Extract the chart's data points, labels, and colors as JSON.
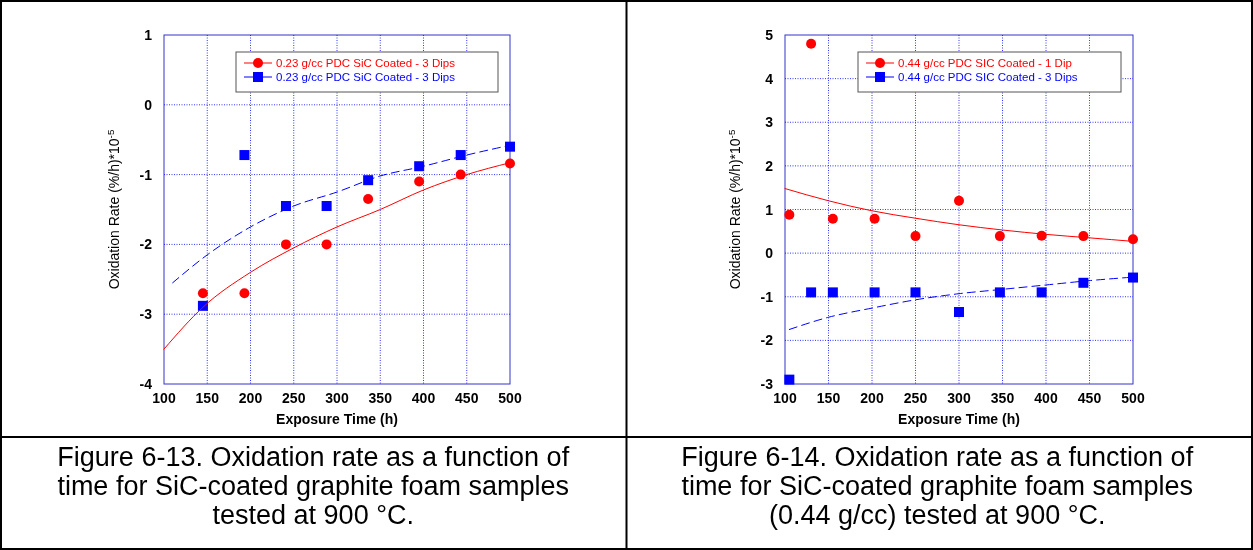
{
  "chart_data": [
    {
      "type": "scatter",
      "xlabel": "Exposure Time (h)",
      "ylabel": "Oxidation Rate (%/h)*10$^{-5}$",
      "xlim": [
        100,
        500
      ],
      "xticks": [
        100,
        150,
        200,
        250,
        300,
        350,
        400,
        450,
        500
      ],
      "ylim": [
        -4,
        1
      ],
      "yticks": [
        -4,
        -3,
        -2,
        -1,
        0,
        1
      ],
      "grid": true,
      "legend": "top right",
      "annotations": [
        "Figure 6-13. Oxidation rate as a function of time for SiC-coated graphite foam samples tested at 900 °C."
      ],
      "series": [
        {
          "name": "0.23 g/cc PDC SiC Coated - 3 Dips",
          "color": "#ff0000",
          "marker": "circle",
          "x": [
            145,
            193,
            241,
            288,
            336,
            395,
            443,
            500
          ],
          "values": [
            -2.7,
            -2.7,
            -2.0,
            -2.0,
            -1.35,
            -1.1,
            -1.0,
            -0.84
          ]
        },
        {
          "name": "0.23 g/cc PDC SiC Coated - 3 Dips",
          "color": "#0000ff",
          "marker": "square",
          "x": [
            145,
            193,
            241,
            288,
            336,
            395,
            443,
            500
          ],
          "values": [
            -2.88,
            -0.72,
            -1.45,
            -1.45,
            -1.08,
            -0.88,
            -0.72,
            -0.6
          ]
        },
        {
          "type": "line",
          "color": "#ff0000",
          "line_style": "solid",
          "x": [
            100,
            145,
            200,
            250,
            300,
            350,
            400,
            450,
            500
          ],
          "values": [
            -3.5,
            -2.9,
            -2.4,
            -2.05,
            -1.75,
            -1.5,
            -1.22,
            -1.0,
            -0.83
          ]
        },
        {
          "type": "line",
          "color": "#0000ff",
          "line_style": "dashed",
          "x": [
            110,
            150,
            200,
            250,
            300,
            350,
            400,
            450,
            500
          ],
          "values": [
            -2.55,
            -2.15,
            -1.75,
            -1.45,
            -1.25,
            -1.02,
            -0.88,
            -0.72,
            -0.58
          ]
        }
      ]
    },
    {
      "type": "scatter",
      "xlabel": "Exposure Time (h)",
      "ylabel": "Oxidation Rate (%/h)*10$^{-5}$",
      "xlim": [
        100,
        500
      ],
      "xticks": [
        100,
        150,
        200,
        250,
        300,
        350,
        400,
        450,
        500
      ],
      "ylim": [
        -3,
        5
      ],
      "yticks": [
        -3,
        -2,
        -1,
        0,
        1,
        2,
        3,
        4,
        5
      ],
      "grid": true,
      "legend": "top right",
      "annotations": [
        "Figure 6-14. Oxidation rate as a function of time for SiC-coated graphite foam samples (0.44 g/cc) tested at 900 °C."
      ],
      "series": [
        {
          "name": "0.44 g/cc PDC SIC Coated - 1 Dip",
          "color": "#ff0000",
          "marker": "circle",
          "x": [
            105,
            130,
            155,
            203,
            250,
            300,
            347,
            395,
            443,
            500
          ],
          "values": [
            0.88,
            4.8,
            0.79,
            0.79,
            0.39,
            1.2,
            0.39,
            0.4,
            0.39,
            0.32
          ]
        },
        {
          "name": "0.44 g/cc PDC SIC Coated - 3 Dips",
          "color": "#0000ff",
          "marker": "square",
          "x": [
            105,
            130,
            155,
            203,
            250,
            300,
            347,
            395,
            443,
            500
          ],
          "values": [
            -2.9,
            -0.9,
            -0.9,
            -0.9,
            -0.9,
            -1.35,
            -0.9,
            -0.9,
            -0.68,
            -0.56
          ]
        },
        {
          "type": "line",
          "color": "#ff0000",
          "line_style": "solid",
          "x": [
            100,
            150,
            200,
            250,
            300,
            350,
            400,
            450,
            500
          ],
          "values": [
            1.48,
            1.2,
            0.97,
            0.8,
            0.65,
            0.53,
            0.43,
            0.35,
            0.27
          ]
        },
        {
          "type": "line",
          "color": "#0000ff",
          "line_style": "dashed",
          "x": [
            105,
            150,
            200,
            250,
            300,
            350,
            400,
            450,
            500
          ],
          "values": [
            -1.75,
            -1.47,
            -1.26,
            -1.07,
            -0.93,
            -0.83,
            -0.73,
            -0.63,
            -0.55
          ]
        }
      ]
    }
  ]
}
